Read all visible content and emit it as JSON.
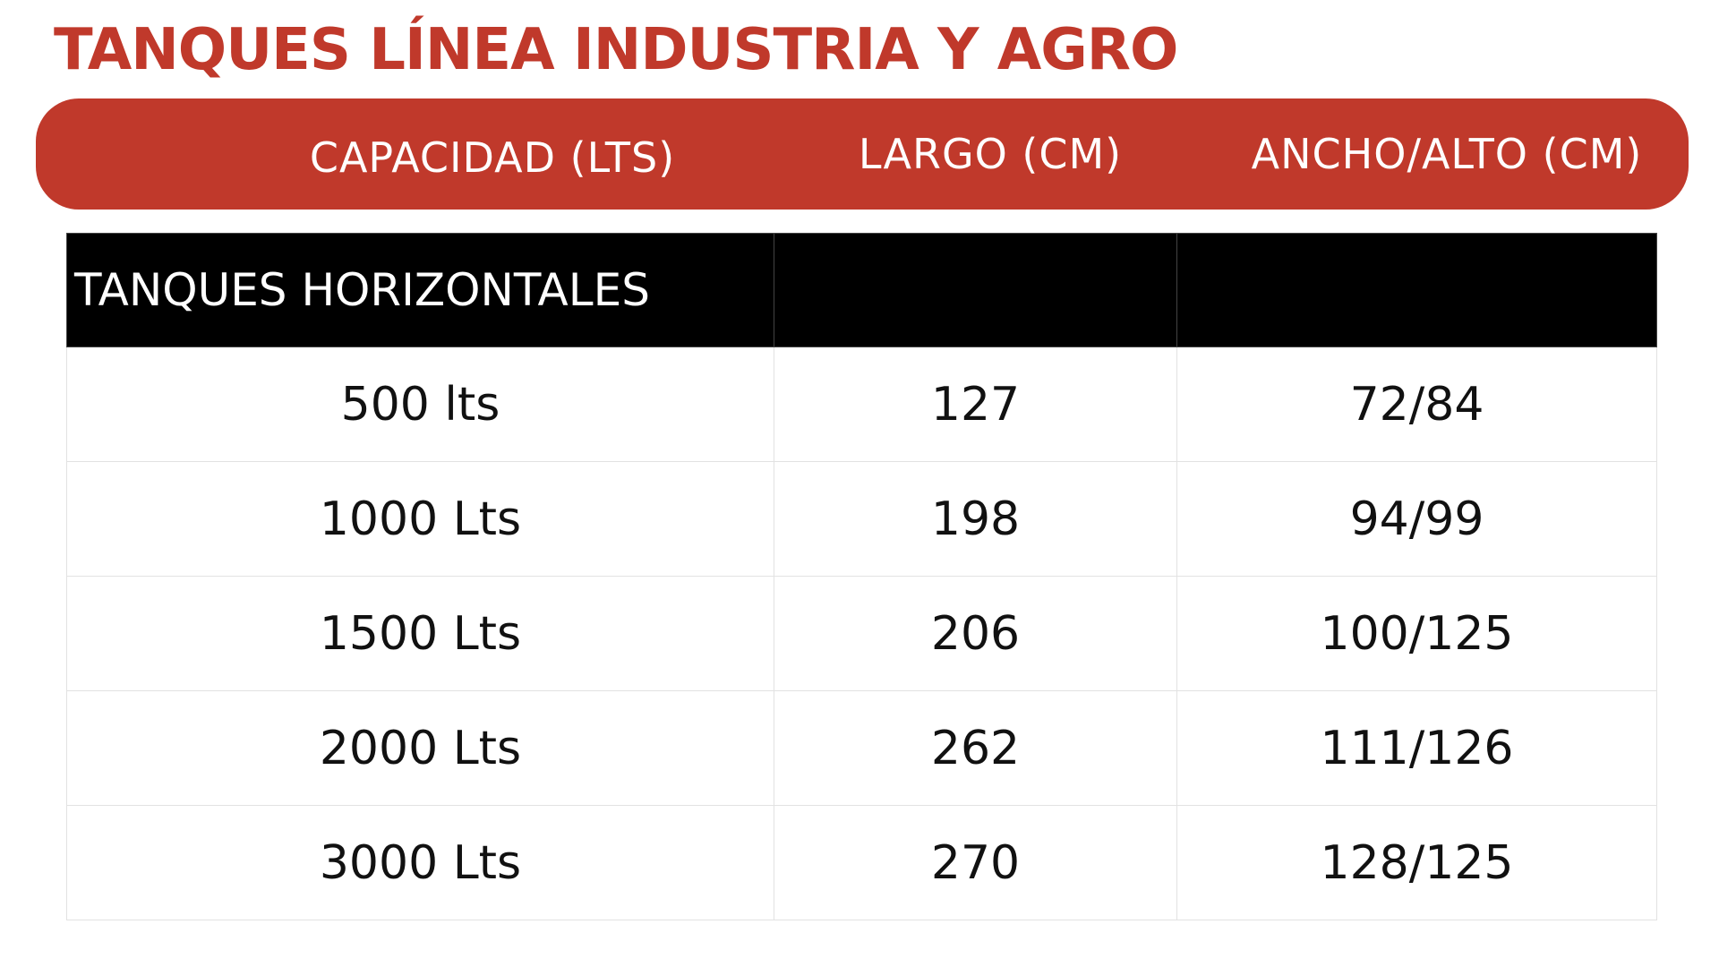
{
  "title": "TANQUES LÍNEA INDUSTRIA Y AGRO",
  "colors": {
    "accent": "#c0392b",
    "section_background": "#000000",
    "header_text": "#ffffff"
  },
  "header": {
    "capacity": "CAPACIDAD (LTS)",
    "largo": "LARGO (CM)",
    "ancho_alto": "ANCHO/ALTO (CM)"
  },
  "section": {
    "label": "TANQUES HORIZONTALES"
  },
  "rows": [
    {
      "capacity": "500 lts",
      "largo": "127",
      "ancho_alto": "72/84"
    },
    {
      "capacity": "1000 Lts",
      "largo": "198",
      "ancho_alto": "94/99"
    },
    {
      "capacity": "1500 Lts",
      "largo": "206",
      "ancho_alto": "100/125"
    },
    {
      "capacity": "2000 Lts",
      "largo": "262",
      "ancho_alto": "111/126"
    },
    {
      "capacity": "3000 Lts",
      "largo": "270",
      "ancho_alto": "128/125"
    }
  ]
}
